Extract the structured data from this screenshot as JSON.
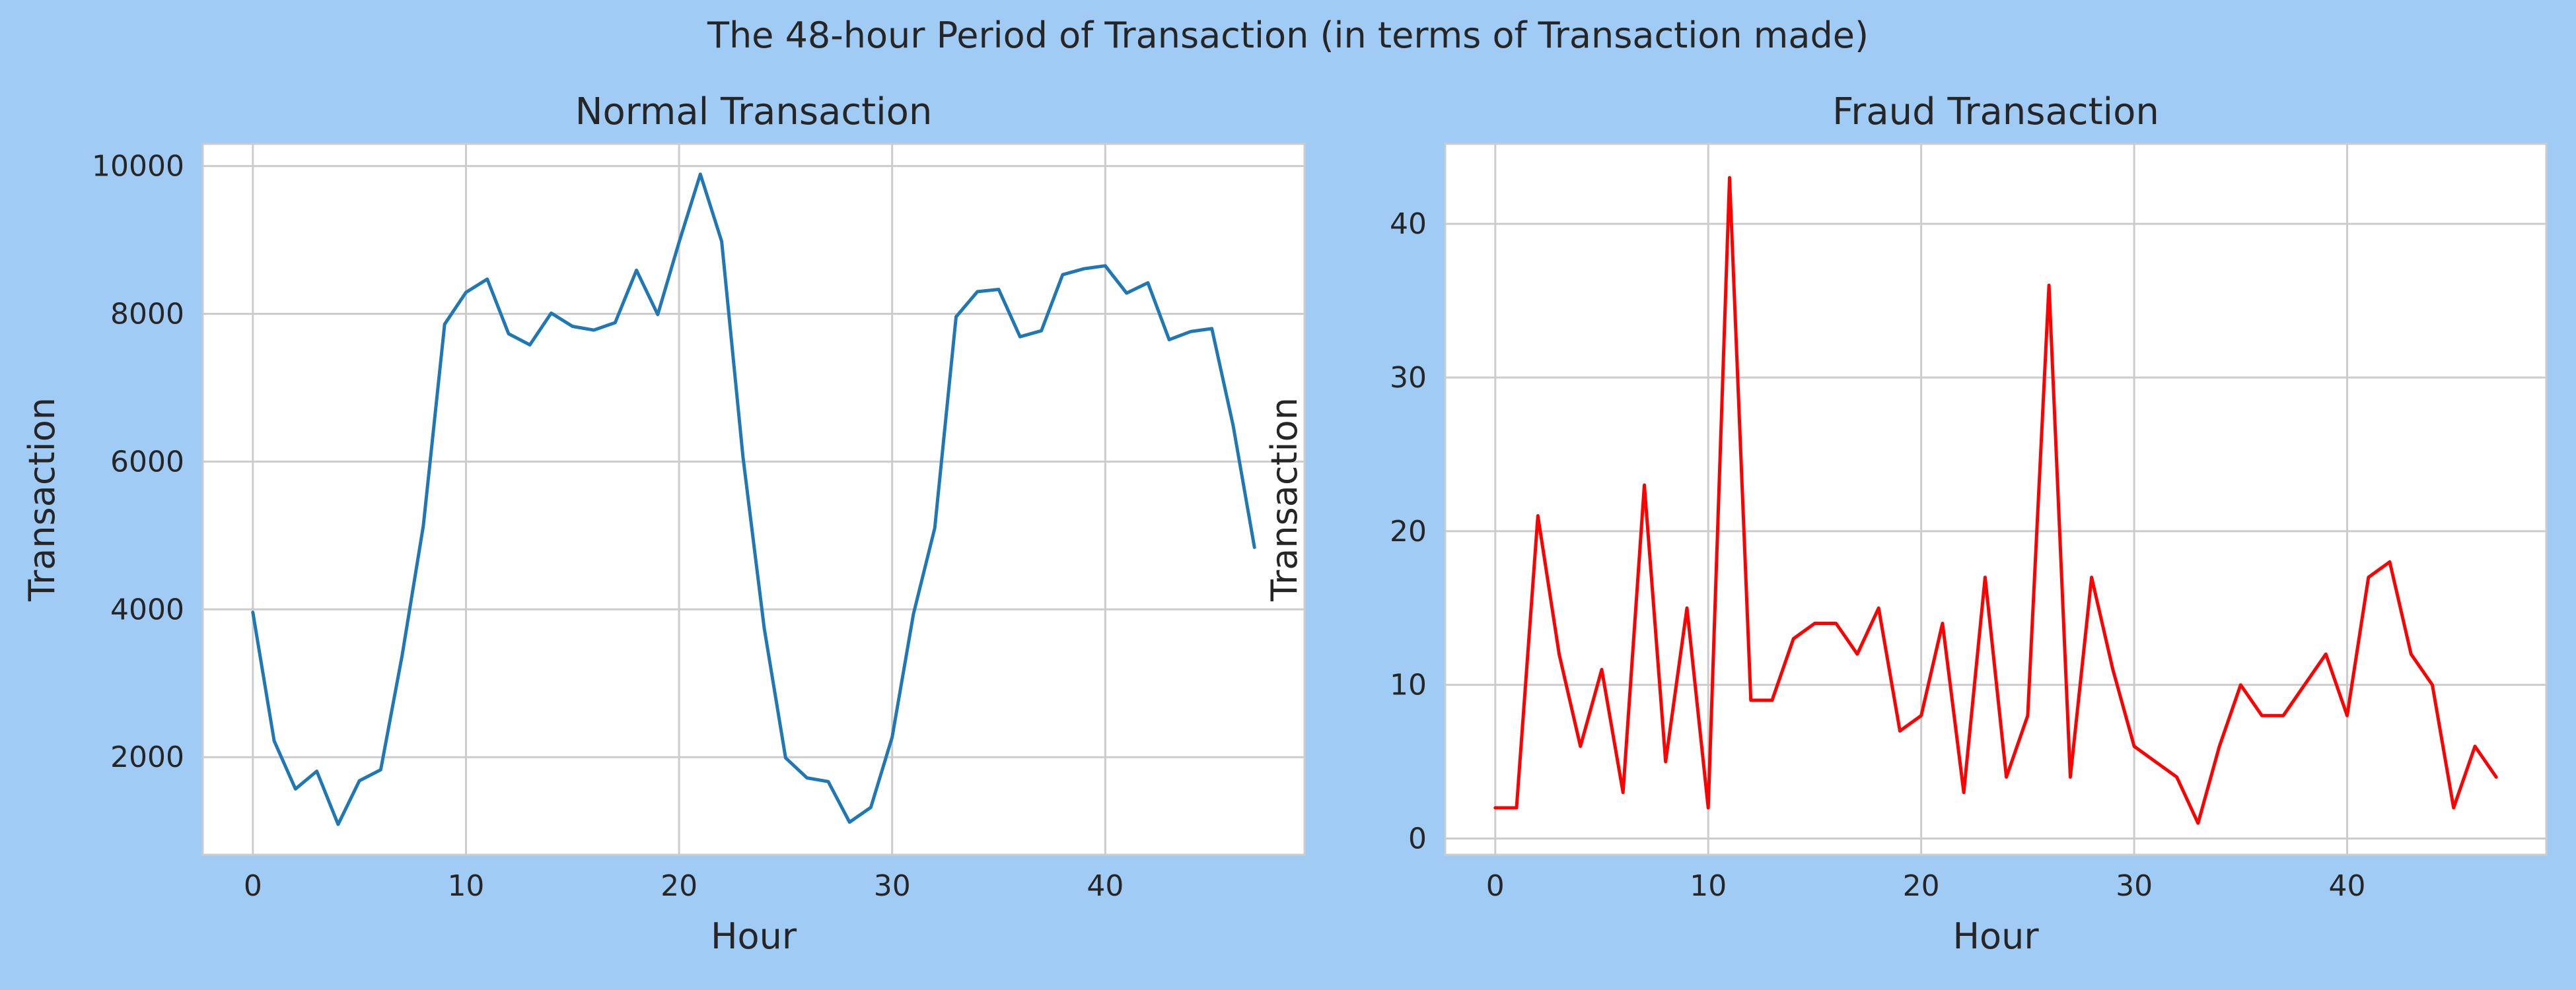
{
  "figure": {
    "title": "The 48-hour Period of Transaction (in terms of Transaction made)",
    "background": "#a0cbf5"
  },
  "chart_data": [
    {
      "type": "line",
      "title": "Normal Transaction",
      "xlabel": "Hour",
      "ylabel": "Transaction",
      "color": "#1f77b4",
      "grid": true,
      "xlim": [
        -2.35,
        49.35
      ],
      "ylim": [
        680,
        10300
      ],
      "xticks": [
        0,
        10,
        20,
        30,
        40
      ],
      "yticks": [
        2000,
        4000,
        6000,
        8000,
        10000
      ],
      "x": [
        0,
        1,
        2,
        3,
        4,
        5,
        6,
        7,
        8,
        9,
        10,
        11,
        12,
        13,
        14,
        15,
        16,
        17,
        18,
        19,
        20,
        21,
        22,
        23,
        24,
        25,
        26,
        27,
        28,
        29,
        30,
        31,
        32,
        33,
        34,
        35,
        36,
        37,
        38,
        39,
        40,
        41,
        42,
        43,
        44,
        45,
        46,
        47
      ],
      "y": [
        3960,
        2220,
        1570,
        1810,
        1090,
        1680,
        1830,
        3370,
        5130,
        7860,
        8290,
        8470,
        7730,
        7580,
        8010,
        7830,
        7780,
        7880,
        8590,
        7990,
        8970,
        9890,
        8980,
        6060,
        3740,
        1990,
        1720,
        1670,
        1120,
        1320,
        2270,
        3940,
        5100,
        7960,
        8300,
        8330,
        7690,
        7770,
        8530,
        8610,
        8650,
        8280,
        8420,
        7650,
        7760,
        7800,
        6490,
        4840
      ]
    },
    {
      "type": "line",
      "title": "Fraud Transaction",
      "xlabel": "Hour",
      "ylabel": "Transaction",
      "color": "#ff0000",
      "grid": true,
      "xlim": [
        -2.35,
        49.35
      ],
      "ylim": [
        -1.05,
        45.2
      ],
      "xticks": [
        0,
        10,
        20,
        30,
        40
      ],
      "yticks": [
        0,
        10,
        20,
        30,
        40
      ],
      "x": [
        0,
        1,
        2,
        3,
        4,
        5,
        6,
        7,
        8,
        9,
        10,
        11,
        12,
        13,
        14,
        15,
        16,
        17,
        18,
        19,
        20,
        21,
        22,
        23,
        24,
        25,
        26,
        27,
        28,
        29,
        30,
        31,
        32,
        33,
        34,
        35,
        36,
        37,
        38,
        39,
        40,
        41,
        42,
        43,
        44,
        45,
        46,
        47
      ],
      "y": [
        2,
        2,
        21,
        12,
        6,
        11,
        3,
        23,
        5,
        15,
        2,
        43,
        9,
        9,
        13,
        14,
        14,
        12,
        15,
        7,
        8,
        14,
        3,
        17,
        4,
        8,
        36,
        4,
        17,
        11,
        6,
        5,
        4,
        1,
        6,
        10,
        8,
        8,
        10,
        12,
        8,
        17,
        18,
        12,
        10,
        2,
        6,
        4
      ]
    }
  ]
}
